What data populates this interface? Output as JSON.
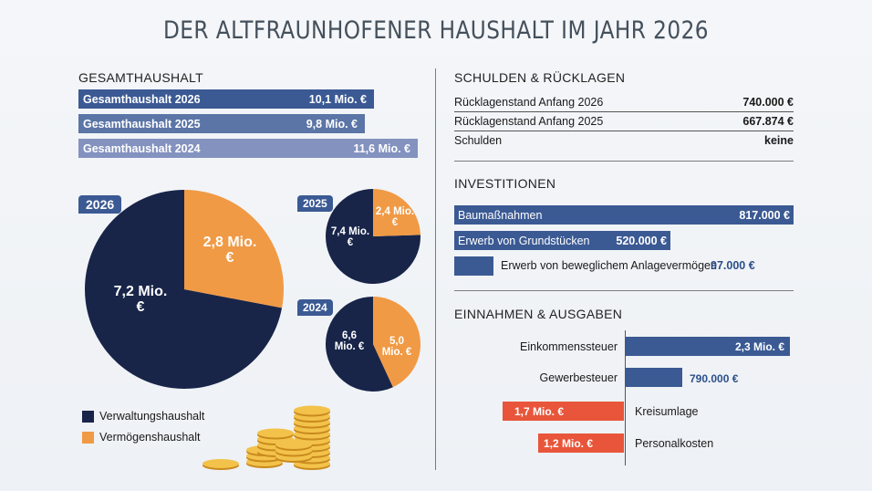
{
  "title": "DER ALTFRAUNHOFENER HAUSHALT IM JAHR 2026",
  "colors": {
    "navy": "#182549",
    "orange": "#f09a45",
    "bar_blue": "#3b5a94",
    "bar_blue_mid": "#5b75a6",
    "bar_blue_light": "#8392bf",
    "red": "#e8553a"
  },
  "gesamt": {
    "heading": "GESAMTHAUSHALT",
    "items": [
      {
        "label": "Gesamthaushalt 2026",
        "value_text": "10,1 Mio. €"
      },
      {
        "label": "Gesamthaushalt 2025",
        "value_text": "9,8 Mio. €"
      },
      {
        "label": "Gesamthaushalt 2024",
        "value_text": "11,6 Mio. €"
      }
    ]
  },
  "pies": {
    "p2026": {
      "year": "2026",
      "v_text": "7,2 Mio. €",
      "o_text": "2,8 Mio. €"
    },
    "p2025": {
      "year": "2025",
      "v_text": "7,4 Mio. €",
      "o_text": "2,4 Mio. €"
    },
    "p2024": {
      "year": "2024",
      "v_text": "6,6 Mio. €",
      "o_text": "5,0 Mio. €"
    }
  },
  "legend": {
    "verwaltung": "Verwaltungshaushalt",
    "vermoegen": "Vermögenshaushalt"
  },
  "schulden": {
    "heading": "SCHULDEN & RÜCKLAGEN",
    "rows": [
      {
        "label": "Rücklagenstand Anfang 2026",
        "value": "740.000 €"
      },
      {
        "label": "Rücklagenstand Anfang 2025",
        "value": "667.874 €"
      },
      {
        "label": "Schulden",
        "value": "keine"
      }
    ]
  },
  "invest": {
    "heading": "INVESTITIONEN",
    "items": [
      {
        "label": "Baumaßnahmen",
        "value": "817.000 €"
      },
      {
        "label": "Erwerb von Grundstücken",
        "value": "520.000 €"
      },
      {
        "label": "Erwerb von beweglichem Anlagevermögen",
        "value": "97.000 €"
      }
    ]
  },
  "ea": {
    "heading": "EINNAHMEN & AUSGABEN",
    "items": [
      {
        "label": "Einkommenssteuer",
        "value": "2,3 Mio. €"
      },
      {
        "label": "Gewerbesteuer",
        "value": "790.000 €"
      },
      {
        "label": "Kreisumlage",
        "value": "1,7 Mio. €"
      },
      {
        "label": "Personalkosten",
        "value": "1,2 Mio. €"
      }
    ]
  },
  "chart_data": [
    {
      "type": "bar",
      "title": "GESAMTHAUSHALT",
      "categories": [
        "Gesamthaushalt 2026",
        "Gesamthaushalt 2025",
        "Gesamthaushalt 2024"
      ],
      "values": [
        10.1,
        9.8,
        11.6
      ],
      "unit": "Mio. €"
    },
    {
      "type": "pie",
      "title": "2026",
      "categories": [
        "Verwaltungshaushalt",
        "Vermögenshaushalt"
      ],
      "values": [
        7.2,
        2.8
      ],
      "unit": "Mio. €"
    },
    {
      "type": "pie",
      "title": "2025",
      "categories": [
        "Verwaltungshaushalt",
        "Vermögenshaushalt"
      ],
      "values": [
        7.4,
        2.4
      ],
      "unit": "Mio. €"
    },
    {
      "type": "pie",
      "title": "2024",
      "categories": [
        "Verwaltungshaushalt",
        "Vermögenshaushalt"
      ],
      "values": [
        6.6,
        5.0
      ],
      "unit": "Mio. €"
    },
    {
      "type": "bar",
      "title": "INVESTITIONEN",
      "categories": [
        "Baumaßnahmen",
        "Erwerb von Grundstücken",
        "Erwerb von beweglichem Anlagevermögen"
      ],
      "values": [
        817000,
        520000,
        97000
      ],
      "unit": "€"
    },
    {
      "type": "bar",
      "title": "EINNAHMEN & AUSGABEN",
      "categories": [
        "Einkommenssteuer",
        "Gewerbesteuer",
        "Kreisumlage",
        "Personalkosten"
      ],
      "values": [
        2300000,
        790000,
        -1700000,
        -1200000
      ],
      "unit": "€"
    }
  ]
}
